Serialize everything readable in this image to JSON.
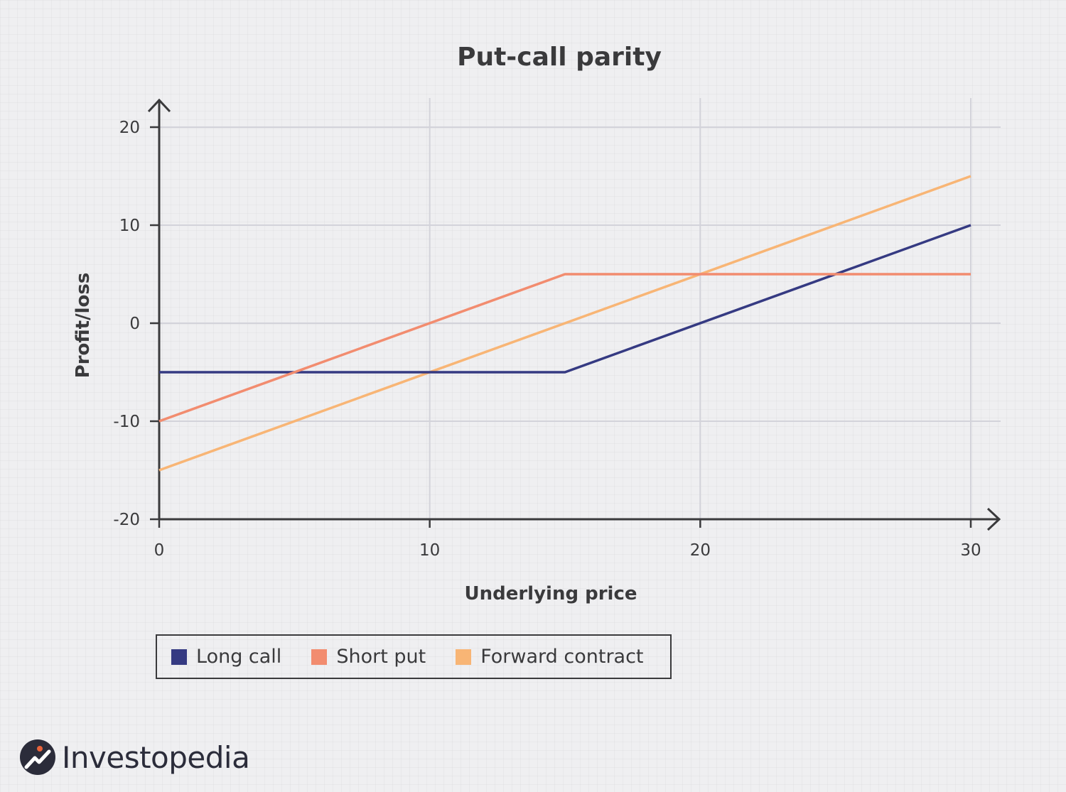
{
  "chart_data": {
    "type": "line",
    "title": "Put-call parity",
    "xlabel": "Underlying price",
    "ylabel": "Profit/loss",
    "xlim": [
      0,
      30
    ],
    "ylim": [
      -20,
      20
    ],
    "xticks": [
      "0",
      "10",
      "20",
      "30"
    ],
    "yticks": [
      "20",
      "10",
      "0",
      "-10",
      "-20"
    ],
    "grid": true,
    "legend": "bottom-left",
    "series": [
      {
        "name": "Long call",
        "color": "#353a82",
        "x": [
          0,
          15,
          30
        ],
        "y": [
          -5,
          -5,
          10
        ]
      },
      {
        "name": "Short put",
        "color": "#f28c6f",
        "x": [
          0,
          15,
          30
        ],
        "y": [
          -10,
          5,
          5
        ]
      },
      {
        "name": "Forward contract",
        "color": "#f8b575",
        "x": [
          0,
          30
        ],
        "y": [
          -15,
          15
        ]
      }
    ]
  },
  "brand": {
    "name": "Investopedia",
    "logo_icon": "investopedia-logo-icon"
  }
}
